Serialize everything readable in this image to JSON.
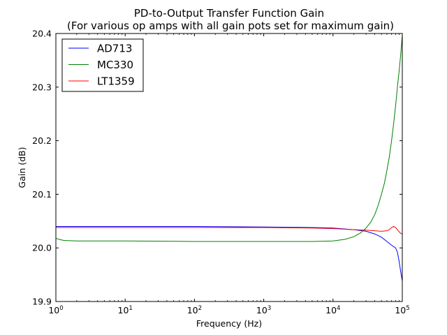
{
  "chart_data": {
    "type": "line",
    "title": "PD-to-Output Transfer Function Gain",
    "subtitle": "(For various op amps with all gain pots set for maximum gain)",
    "xlabel": "Frequency (Hz)",
    "ylabel": "Gain (dB)",
    "xscale": "log",
    "xlim": [
      1,
      100000
    ],
    "ylim": [
      19.9,
      20.4
    ],
    "x_ticks": [
      {
        "base": "10",
        "exp": "0"
      },
      {
        "base": "10",
        "exp": "1"
      },
      {
        "base": "10",
        "exp": "2"
      },
      {
        "base": "10",
        "exp": "3"
      },
      {
        "base": "10",
        "exp": "4"
      },
      {
        "base": "10",
        "exp": "5"
      }
    ],
    "y_ticks": [
      "19.9",
      "20.0",
      "20.1",
      "20.2",
      "20.3",
      "20.4"
    ],
    "grid": false,
    "legend_position": "top-left",
    "series": [
      {
        "name": "AD713",
        "color": "#0000ff",
        "points": [
          [
            1,
            20.04
          ],
          [
            3,
            20.04
          ],
          [
            10,
            20.04
          ],
          [
            100,
            20.04
          ],
          [
            1000,
            20.039
          ],
          [
            5000,
            20.038
          ],
          [
            10000,
            20.037
          ],
          [
            20000,
            20.034
          ],
          [
            30000,
            20.031
          ],
          [
            40000,
            20.026
          ],
          [
            50000,
            20.02
          ],
          [
            60000,
            20.012
          ],
          [
            70000,
            20.005
          ],
          [
            80000,
            20.0
          ],
          [
            85000,
            19.992
          ],
          [
            90000,
            19.975
          ],
          [
            95000,
            19.955
          ],
          [
            100000,
            19.938
          ]
        ]
      },
      {
        "name": "MC330",
        "color": "#008000",
        "points": [
          [
            1,
            20.018
          ],
          [
            1.1,
            20.016
          ],
          [
            1.3,
            20.014
          ],
          [
            2,
            20.013
          ],
          [
            10,
            20.013
          ],
          [
            100,
            20.012
          ],
          [
            1000,
            20.012
          ],
          [
            5000,
            20.012
          ],
          [
            10000,
            20.013
          ],
          [
            15000,
            20.016
          ],
          [
            20000,
            20.021
          ],
          [
            25000,
            20.028
          ],
          [
            30000,
            20.037
          ],
          [
            35000,
            20.048
          ],
          [
            40000,
            20.062
          ],
          [
            45000,
            20.08
          ],
          [
            50000,
            20.1
          ],
          [
            55000,
            20.12
          ],
          [
            60000,
            20.145
          ],
          [
            65000,
            20.17
          ],
          [
            70000,
            20.2
          ],
          [
            75000,
            20.232
          ],
          [
            80000,
            20.265
          ],
          [
            85000,
            20.3
          ],
          [
            90000,
            20.33
          ],
          [
            95000,
            20.362
          ],
          [
            100000,
            20.397
          ]
        ]
      },
      {
        "name": "LT1359",
        "color": "#ff0000",
        "points": [
          [
            1,
            20.038
          ],
          [
            10,
            20.038
          ],
          [
            100,
            20.038
          ],
          [
            1000,
            20.038
          ],
          [
            5000,
            20.037
          ],
          [
            10000,
            20.036
          ],
          [
            20000,
            20.034
          ],
          [
            30000,
            20.033
          ],
          [
            40000,
            20.032
          ],
          [
            50000,
            20.031
          ],
          [
            60000,
            20.032
          ],
          [
            65000,
            20.034
          ],
          [
            70000,
            20.038
          ],
          [
            75000,
            20.04
          ],
          [
            80000,
            20.038
          ],
          [
            85000,
            20.034
          ],
          [
            90000,
            20.03
          ],
          [
            95000,
            20.027
          ],
          [
            100000,
            20.026
          ]
        ]
      }
    ]
  }
}
